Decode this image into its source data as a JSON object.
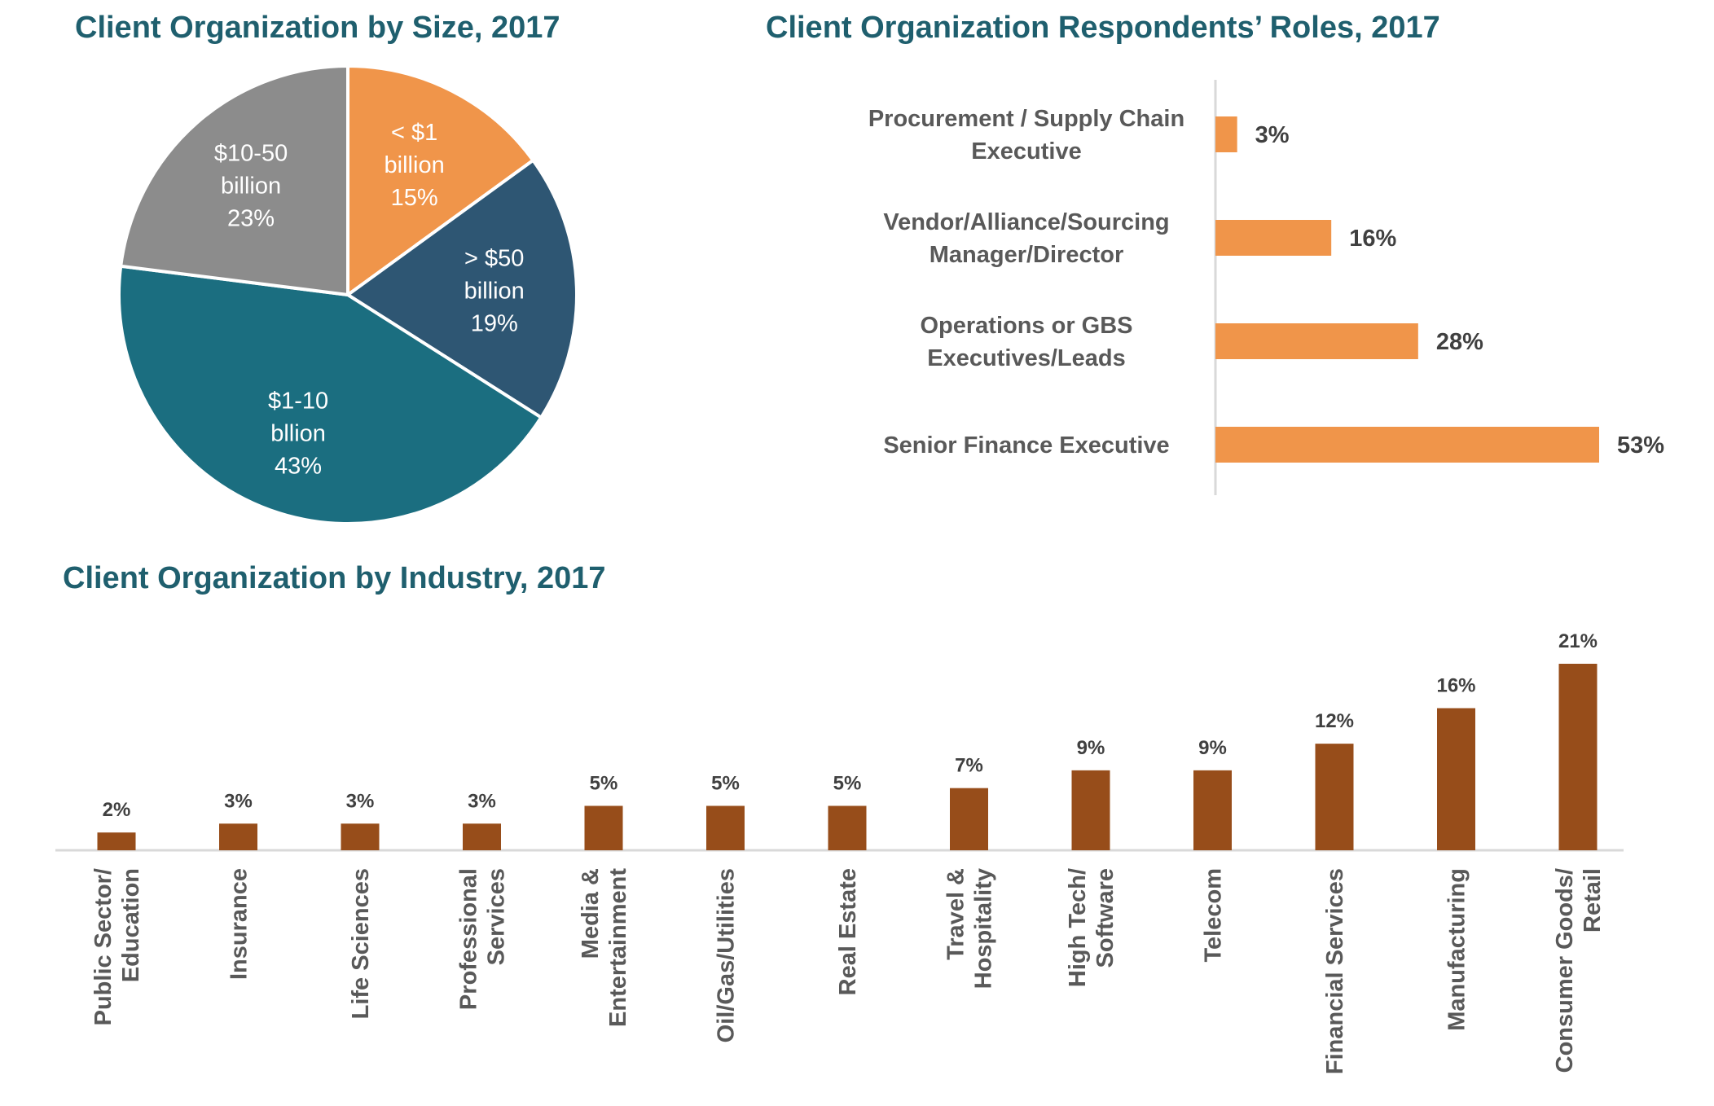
{
  "chart_data": [
    {
      "type": "pie",
      "title": "Client Organization by Size, 2017",
      "slices": [
        {
          "label_lines": [
            "< $1",
            "billion"
          ],
          "value": 15,
          "value_label": "15%",
          "color": "#f0954a",
          "text_color": "#ffffff"
        },
        {
          "label_lines": [
            "> $50",
            "billion"
          ],
          "value": 19,
          "value_label": "19%",
          "color": "#2e5673",
          "text_color": "#ffffff"
        },
        {
          "label_lines": [
            "$1-10",
            "bllion"
          ],
          "value": 43,
          "value_label": "43%",
          "color": "#1b6e80",
          "text_color": "#ffffff"
        },
        {
          "label_lines": [
            "$10-50",
            "billion"
          ],
          "value": 23,
          "value_label": "23%",
          "color": "#8c8c8c",
          "text_color": "#ffffff"
        }
      ]
    },
    {
      "type": "bar",
      "orientation": "horizontal",
      "title": "Client Organization Respondents’ Roles, 2017",
      "bar_color": "#f0954a",
      "categories": [
        [
          "Procurement / Supply Chain",
          "Executive"
        ],
        [
          "Vendor/Alliance/Sourcing",
          "Manager/Director"
        ],
        [
          "Operations or GBS",
          "Executives/Leads"
        ],
        [
          "Senior Finance Executive"
        ]
      ],
      "values": [
        3,
        16,
        28,
        53
      ],
      "value_labels": [
        "3%",
        "16%",
        "28%",
        "53%"
      ]
    },
    {
      "type": "bar",
      "orientation": "vertical",
      "title": "Client Organization by Industry, 2017",
      "bar_color": "#974d1a",
      "categories": [
        [
          "Public Sector/",
          "Education"
        ],
        [
          "Insurance"
        ],
        [
          "Life Sciences"
        ],
        [
          "Professional",
          "Services"
        ],
        [
          "Media &",
          "Entertainment"
        ],
        [
          "Oil/Gas/Utilities"
        ],
        [
          "Real Estate"
        ],
        [
          "Travel &",
          "Hospitality"
        ],
        [
          "High Tech/",
          "Software"
        ],
        [
          "Telecom"
        ],
        [
          "Financial Services"
        ],
        [
          "Manufacturing"
        ],
        [
          "Consumer Goods/",
          "Retail"
        ]
      ],
      "values": [
        2,
        3,
        3,
        3,
        5,
        5,
        5,
        7,
        9,
        9,
        12,
        16,
        21
      ],
      "value_labels": [
        "2%",
        "3%",
        "3%",
        "3%",
        "5%",
        "5%",
        "5%",
        "7%",
        "9%",
        "9%",
        "12%",
        "16%",
        "21%"
      ]
    }
  ]
}
